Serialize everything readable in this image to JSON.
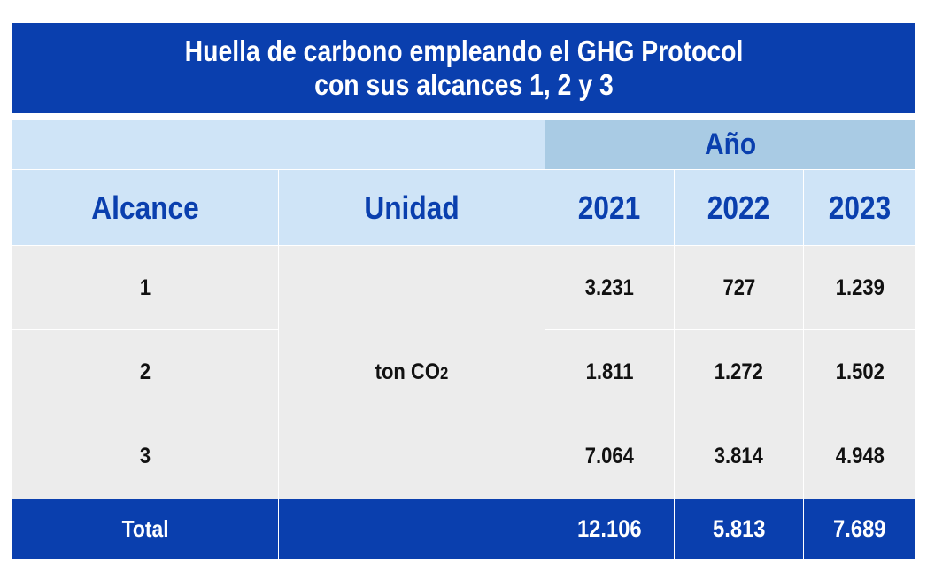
{
  "title": {
    "line1": "Huella de carbono empleando el GHG Protocol",
    "line2": "con sus alcances 1, 2 y 3"
  },
  "header": {
    "year_group": "Año",
    "col_alcance": "Alcance",
    "col_unidad": "Unidad",
    "years": [
      "2021",
      "2022",
      "2023"
    ]
  },
  "rows": [
    {
      "alcance": "1",
      "values": [
        "3.231",
        "727",
        "1.239"
      ]
    },
    {
      "alcance": "2",
      "values": [
        "1.811",
        "1.272",
        "1.502"
      ]
    },
    {
      "alcance": "3",
      "values": [
        "7.064",
        "3.814",
        "4.948"
      ]
    }
  ],
  "unit": {
    "base": "ton CO",
    "subscript": "2"
  },
  "total": {
    "label": "Total",
    "unit": "",
    "values": [
      "12.106",
      "5.813",
      "7.689"
    ]
  },
  "colors": {
    "primary_blue": "#0a3fae",
    "light_blue": "#cfe4f7",
    "year_blue": "#a9cbe4",
    "body_gray": "#ececec"
  }
}
